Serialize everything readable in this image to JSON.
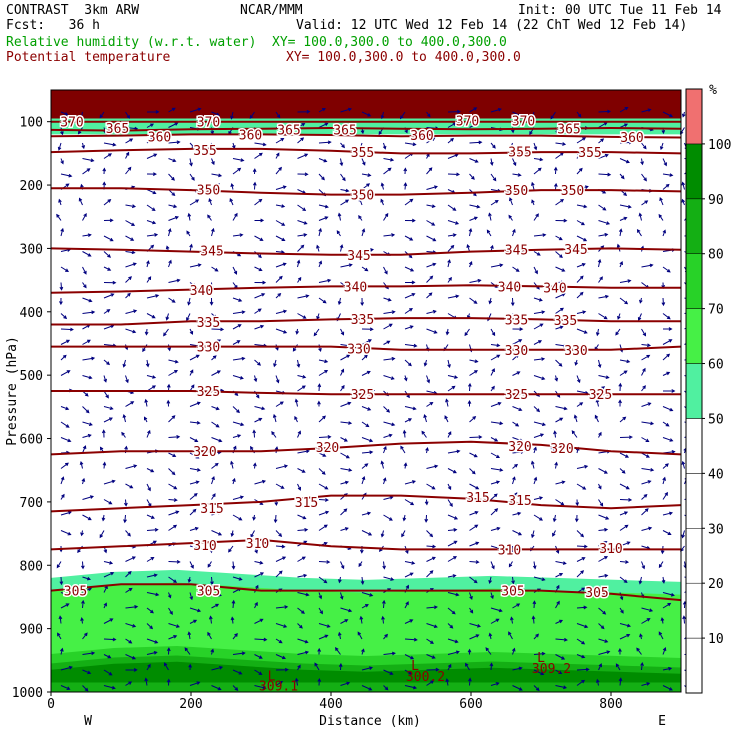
{
  "header": {
    "model": "CONTRAST  3km ARW",
    "org": "NCAR/MMM",
    "init": "Init: 00 UTC Tue 11 Feb 14",
    "fcst": "Fcst:   36 h",
    "valid": "Valid: 12 UTC Wed 12 Feb 14 (22 ChT Wed 12 Feb 14)",
    "field1": "Relative humidity (w.r.t. water)",
    "xy1": "XY= 100.0,300.0 to 400.0,300.0",
    "field2": "Potential temperature",
    "xy2": "XY= 100.0,300.0 to 400.0,300.0"
  },
  "colors": {
    "theta": "#8b0000",
    "wind": "#00007f",
    "rh_levels": [
      "#ffffff",
      "#ffffff",
      "#ffffff",
      "#ffffff",
      "#ffffff",
      "#50f0a0",
      "#46f046",
      "#28d228",
      "#14af14",
      "#008c00",
      "#f07070"
    ],
    "rh_bins": [
      0,
      10,
      20,
      30,
      40,
      50,
      60,
      70,
      80,
      90,
      100
    ]
  },
  "chart_data": {
    "type": "contour",
    "xlabel": "Distance (km)",
    "ylabel": "Pressure (hPa)",
    "xlim": [
      0,
      900
    ],
    "ylim": [
      1000,
      50
    ],
    "x_ticks": [
      0,
      200,
      400,
      600,
      800
    ],
    "y_ticks": [
      100,
      200,
      300,
      400,
      500,
      600,
      700,
      800,
      900,
      1000
    ],
    "left_end_label": "W",
    "right_end_label": "E",
    "colorbar": {
      "unit": "%",
      "ticks": [
        10,
        20,
        30,
        40,
        50,
        60,
        70,
        80,
        90,
        100
      ]
    },
    "theta_contours": [
      {
        "value": 305,
        "p": [
          840,
          830,
          830,
          840,
          840,
          840,
          840,
          840,
          845,
          855
        ]
      },
      {
        "value": 310,
        "p": [
          775,
          770,
          765,
          760,
          770,
          775,
          775,
          775,
          775,
          775
        ]
      },
      {
        "value": 315,
        "p": [
          715,
          710,
          705,
          700,
          690,
          690,
          695,
          705,
          710,
          705
        ]
      },
      {
        "value": 320,
        "p": [
          625,
          620,
          620,
          620,
          615,
          608,
          605,
          610,
          620,
          625
        ]
      },
      {
        "value": 325,
        "p": [
          525,
          525,
          525,
          528,
          530,
          530,
          530,
          530,
          530,
          530
        ]
      },
      {
        "value": 330,
        "p": [
          455,
          455,
          455,
          455,
          455,
          460,
          460,
          460,
          460,
          455
        ]
      },
      {
        "value": 335,
        "p": [
          420,
          420,
          415,
          415,
          412,
          410,
          410,
          412,
          415,
          415
        ]
      },
      {
        "value": 340,
        "p": [
          370,
          368,
          365,
          362,
          360,
          360,
          358,
          360,
          362,
          362
        ]
      },
      {
        "value": 345,
        "p": [
          300,
          302,
          305,
          308,
          310,
          310,
          305,
          302,
          300,
          302
        ]
      },
      {
        "value": 350,
        "p": [
          205,
          205,
          208,
          212,
          215,
          215,
          212,
          208,
          208,
          210
        ]
      },
      {
        "value": 355,
        "p": [
          148,
          145,
          143,
          143,
          146,
          150,
          150,
          148,
          148,
          150
        ]
      },
      {
        "value": 360,
        "p": [
          123,
          122,
          120,
          120,
          121,
          123,
          122,
          122,
          124,
          125
        ]
      },
      {
        "value": 365,
        "p": [
          113,
          114,
          112,
          111,
          110,
          111,
          112,
          111,
          110,
          111
        ]
      },
      {
        "value": 370,
        "p": [
          100,
          100,
          100,
          100,
          100,
          100,
          100,
          100,
          100,
          100
        ]
      }
    ],
    "theta_labels": [
      {
        "text": "370",
        "x": 30,
        "p": 100
      },
      {
        "text": "365",
        "x": 95,
        "p": 110
      },
      {
        "text": "360",
        "x": 155,
        "p": 123
      },
      {
        "text": "370",
        "x": 225,
        "p": 100
      },
      {
        "text": "360",
        "x": 285,
        "p": 120
      },
      {
        "text": "365",
        "x": 340,
        "p": 112
      },
      {
        "text": "365",
        "x": 420,
        "p": 112
      },
      {
        "text": "360",
        "x": 530,
        "p": 121
      },
      {
        "text": "370",
        "x": 595,
        "p": 98
      },
      {
        "text": "370",
        "x": 675,
        "p": 98
      },
      {
        "text": "365",
        "x": 740,
        "p": 111
      },
      {
        "text": "360",
        "x": 830,
        "p": 124
      },
      {
        "text": "355",
        "x": 220,
        "p": 145
      },
      {
        "text": "355",
        "x": 445,
        "p": 148
      },
      {
        "text": "355",
        "x": 670,
        "p": 147
      },
      {
        "text": "355",
        "x": 770,
        "p": 148
      },
      {
        "text": "350",
        "x": 225,
        "p": 207
      },
      {
        "text": "350",
        "x": 445,
        "p": 215
      },
      {
        "text": "350",
        "x": 665,
        "p": 208
      },
      {
        "text": "350",
        "x": 745,
        "p": 208
      },
      {
        "text": "345",
        "x": 230,
        "p": 303
      },
      {
        "text": "345",
        "x": 440,
        "p": 310
      },
      {
        "text": "345",
        "x": 665,
        "p": 302
      },
      {
        "text": "345",
        "x": 750,
        "p": 301
      },
      {
        "text": "340",
        "x": 215,
        "p": 366
      },
      {
        "text": "340",
        "x": 435,
        "p": 360
      },
      {
        "text": "340",
        "x": 655,
        "p": 360
      },
      {
        "text": "340",
        "x": 720,
        "p": 362
      },
      {
        "text": "335",
        "x": 225,
        "p": 416
      },
      {
        "text": "335",
        "x": 445,
        "p": 411
      },
      {
        "text": "335",
        "x": 665,
        "p": 412
      },
      {
        "text": "335",
        "x": 735,
        "p": 413
      },
      {
        "text": "330",
        "x": 225,
        "p": 455
      },
      {
        "text": "330",
        "x": 440,
        "p": 458
      },
      {
        "text": "330",
        "x": 665,
        "p": 460
      },
      {
        "text": "330",
        "x": 750,
        "p": 460
      },
      {
        "text": "325",
        "x": 225,
        "p": 525
      },
      {
        "text": "325",
        "x": 445,
        "p": 530
      },
      {
        "text": "325",
        "x": 665,
        "p": 530
      },
      {
        "text": "325",
        "x": 785,
        "p": 530
      },
      {
        "text": "320",
        "x": 220,
        "p": 620
      },
      {
        "text": "320",
        "x": 395,
        "p": 613
      },
      {
        "text": "320",
        "x": 670,
        "p": 612
      },
      {
        "text": "320",
        "x": 730,
        "p": 615
      },
      {
        "text": "315",
        "x": 230,
        "p": 710
      },
      {
        "text": "315",
        "x": 365,
        "p": 700
      },
      {
        "text": "315",
        "x": 610,
        "p": 692
      },
      {
        "text": "315",
        "x": 670,
        "p": 697
      },
      {
        "text": "310",
        "x": 220,
        "p": 768
      },
      {
        "text": "310",
        "x": 295,
        "p": 765
      },
      {
        "text": "310",
        "x": 655,
        "p": 775
      },
      {
        "text": "310",
        "x": 800,
        "p": 773
      },
      {
        "text": "305",
        "x": 35,
        "p": 840
      },
      {
        "text": "305",
        "x": 225,
        "p": 840
      },
      {
        "text": "305",
        "x": 660,
        "p": 840
      },
      {
        "text": "305",
        "x": 780,
        "p": 842
      }
    ],
    "min_labels": [
      {
        "text": "L",
        "x": 315,
        "p": 982
      },
      {
        "text": "309.1",
        "x": 325,
        "p": 998
      },
      {
        "text": "L",
        "x": 520,
        "p": 965
      },
      {
        "text": "300.2",
        "x": 535,
        "p": 983
      },
      {
        "text": "L",
        "x": 700,
        "p": 953
      },
      {
        "text": "309.2",
        "x": 715,
        "p": 970
      }
    ],
    "rh_fill": [
      {
        "level": 100,
        "region": "top",
        "p_top": 50,
        "p_bottom": 95
      },
      {
        "level": 50,
        "region": "top",
        "p_top": 95,
        "p_bottom": 120
      },
      {
        "level": 50,
        "region": "bottom",
        "p_top": 820,
        "p_bottom": 1000
      },
      {
        "level": 60,
        "region": "bottom",
        "p_top": 840,
        "p_bottom": 1000
      },
      {
        "level": 70,
        "region": "bottom",
        "p_top": 940,
        "p_bottom": 1000
      },
      {
        "level": 80,
        "region": "bottom",
        "p_top": 955,
        "p_bottom": 1000
      },
      {
        "level": 90,
        "region": "bottom",
        "p_top": 965,
        "p_bottom": 985
      }
    ]
  }
}
